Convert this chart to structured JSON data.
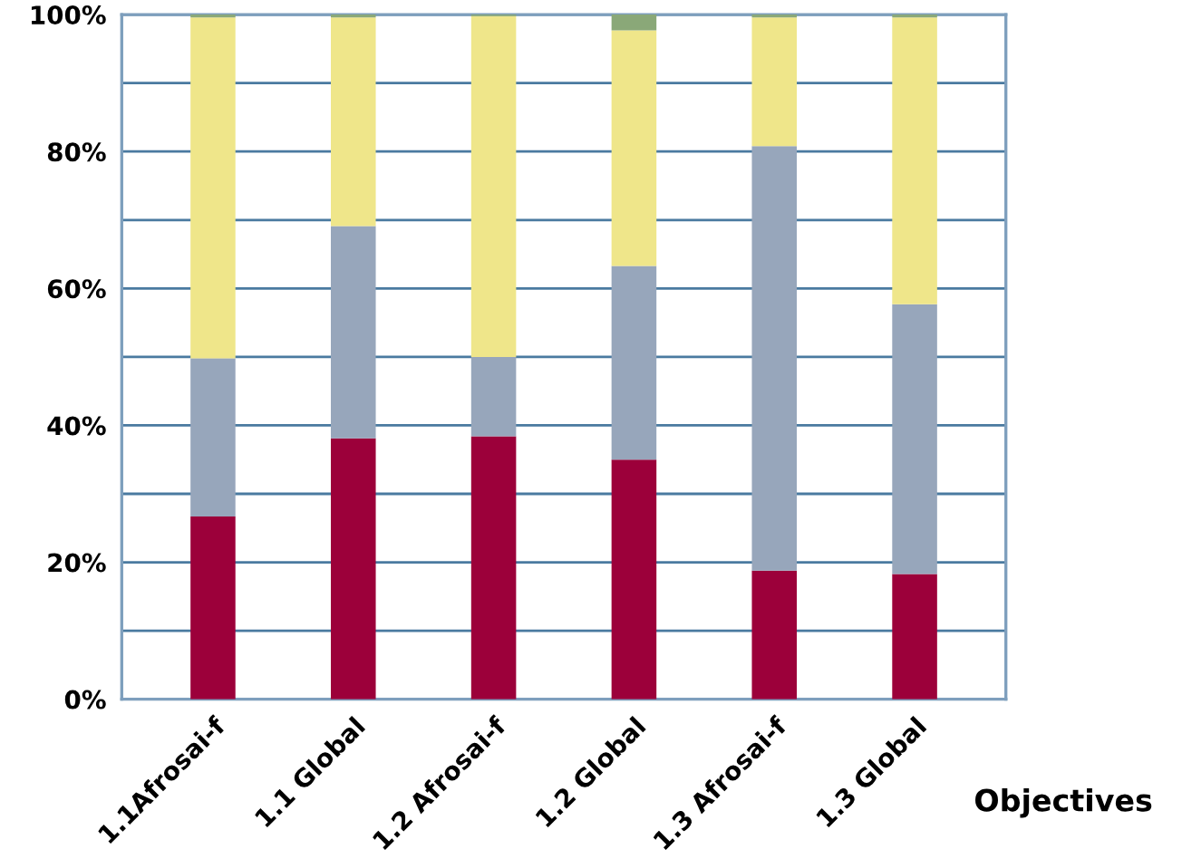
{
  "chart_data": {
    "type": "bar",
    "stacked": true,
    "xlabel": "Objectives",
    "categories": [
      "1.1Afrosai-f",
      "1.1 Global",
      "1.2 Afrosai-f",
      "1.2 Global",
      "1.3 Afrosai-f",
      "1.3 Global"
    ],
    "series": [
      {
        "color": "#9c003a",
        "values": [
          26.7,
          38.1,
          38.4,
          35.0,
          18.8,
          18.3
        ]
      },
      {
        "color": "#97a6bb",
        "values": [
          23.1,
          31.0,
          11.6,
          28.3,
          62.0,
          39.4
        ]
      },
      {
        "color": "#efe68a",
        "values": [
          49.8,
          30.5,
          49.8,
          34.4,
          18.8,
          41.9
        ]
      },
      {
        "color": "#8aa878",
        "values": [
          0.4,
          0.4,
          0.2,
          2.3,
          0.4,
          0.4
        ]
      }
    ],
    "ylim": [
      0,
      100
    ],
    "yticks": [
      {
        "value": 0,
        "label": "0%"
      },
      {
        "value": 10,
        "label": null
      },
      {
        "value": 20,
        "label": "20%"
      },
      {
        "value": 30,
        "label": null
      },
      {
        "value": 40,
        "label": "40%"
      },
      {
        "value": 50,
        "label": null
      },
      {
        "value": 60,
        "label": "60%"
      },
      {
        "value": 70,
        "label": null
      },
      {
        "value": 80,
        "label": "80%"
      },
      {
        "value": 90,
        "label": null
      },
      {
        "value": 100,
        "label": "100%"
      }
    ],
    "grid": "y"
  }
}
